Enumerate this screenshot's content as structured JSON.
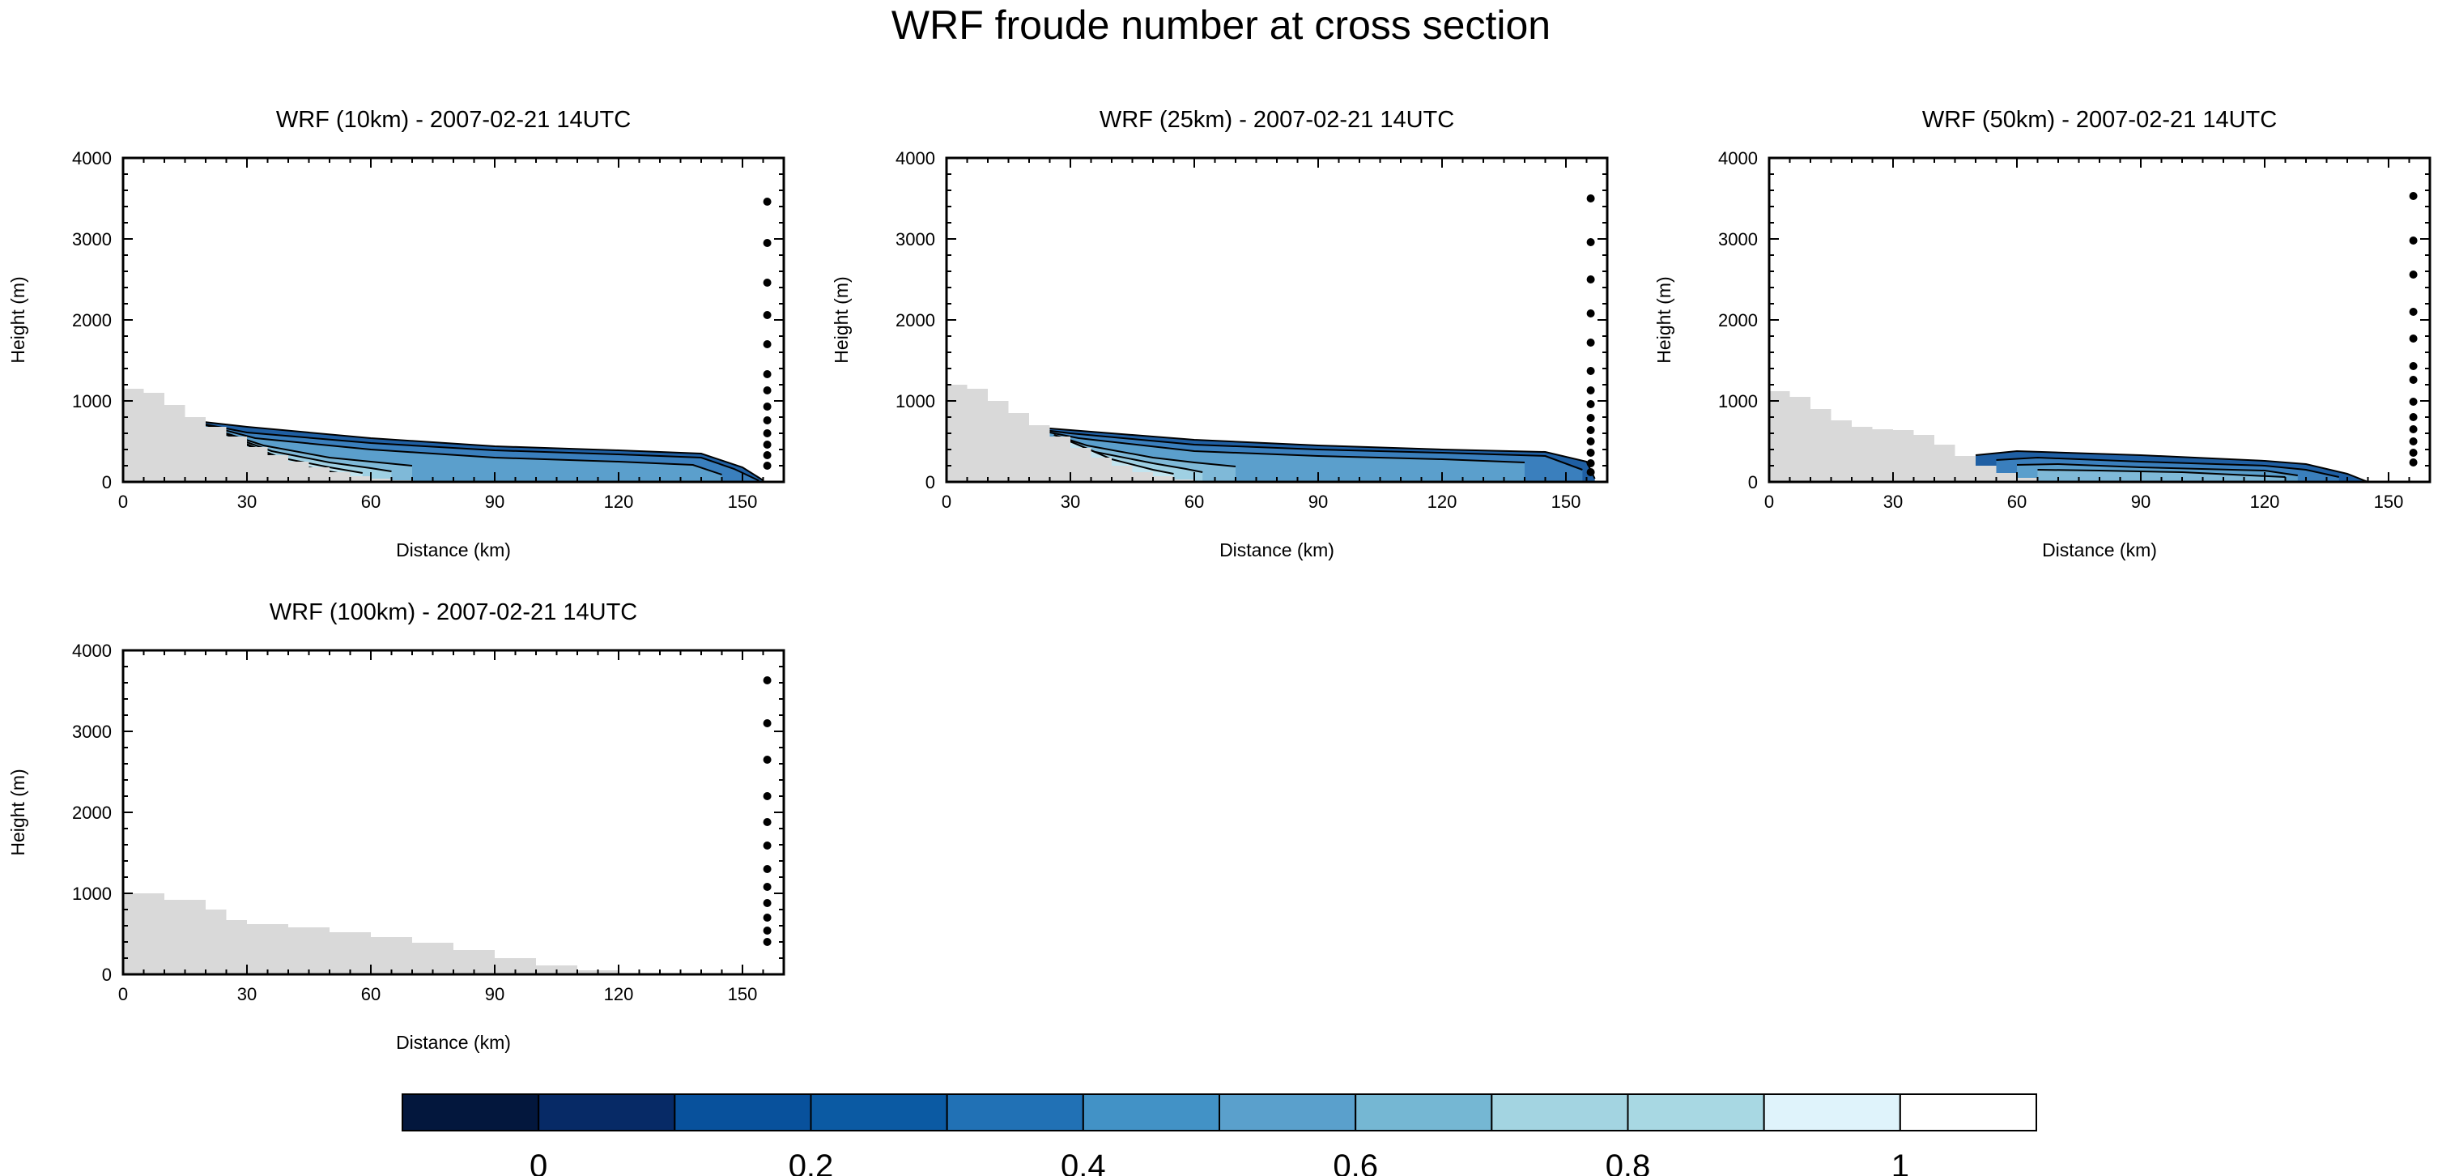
{
  "figure": {
    "title": "WRF froude number at cross section"
  },
  "chart_data": [
    {
      "type": "contour",
      "title": "WRF (10km) - 2007-02-21 14UTC",
      "xlabel": "Distance (km)",
      "ylabel": "Height (m)",
      "xlim": [
        0,
        160
      ],
      "ylim": [
        0,
        4000
      ],
      "xticks": [
        0,
        30,
        60,
        90,
        120,
        150
      ],
      "yticks": [
        0,
        1000,
        2000,
        3000,
        4000
      ],
      "terrain": {
        "x": [
          0,
          5,
          10,
          15,
          20,
          25,
          30,
          35,
          40,
          45,
          50,
          55,
          60,
          65,
          70,
          75,
          80,
          85,
          90
        ],
        "y": [
          1150,
          1100,
          950,
          800,
          680,
          560,
          430,
          330,
          250,
          180,
          120,
          70,
          40,
          20,
          10,
          5,
          0,
          0,
          0
        ]
      },
      "contour_lines": [
        {
          "x": [
            16,
            30,
            60,
            90,
            120,
            140,
            150,
            155
          ],
          "y": [
            760,
            680,
            540,
            440,
            390,
            350,
            180,
            20
          ]
        },
        {
          "x": [
            18,
            30,
            60,
            90,
            120,
            140,
            148,
            154
          ],
          "y": [
            730,
            610,
            480,
            390,
            340,
            300,
            160,
            15
          ]
        },
        {
          "x": [
            20,
            32,
            60,
            90,
            120,
            138,
            145
          ],
          "y": [
            700,
            540,
            400,
            300,
            250,
            210,
            90
          ]
        },
        {
          "x": [
            22,
            34,
            50,
            60,
            70
          ],
          "y": [
            650,
            450,
            300,
            250,
            200
          ]
        },
        {
          "x": [
            24,
            36,
            50,
            60,
            65
          ],
          "y": [
            600,
            380,
            240,
            170,
            130
          ]
        },
        {
          "x": [
            26,
            38,
            50,
            58
          ],
          "y": [
            550,
            300,
            180,
            110
          ]
        },
        {
          "x": [
            28,
            40,
            50,
            55
          ],
          "y": [
            500,
            230,
            130,
            80
          ]
        }
      ],
      "profile_points": [
        3460,
        2950,
        2460,
        2060,
        1700,
        1330,
        1130,
        930,
        760,
        600,
        460,
        330,
        200
      ]
    },
    {
      "type": "contour",
      "title": "WRF (25km) - 2007-02-21 14UTC",
      "xlabel": "Distance (km)",
      "ylabel": "Height (m)",
      "xlim": [
        0,
        160
      ],
      "ylim": [
        0,
        4000
      ],
      "xticks": [
        0,
        30,
        60,
        90,
        120,
        150
      ],
      "yticks": [
        0,
        1000,
        2000,
        3000,
        4000
      ],
      "terrain": {
        "x": [
          0,
          5,
          10,
          15,
          20,
          25,
          30,
          35,
          40,
          45,
          50,
          55,
          60,
          65,
          70
        ],
        "y": [
          1200,
          1150,
          1000,
          850,
          700,
          560,
          420,
          300,
          200,
          120,
          70,
          30,
          10,
          0,
          0
        ]
      },
      "contour_lines": [
        {
          "x": [
            20,
            30,
            60,
            90,
            120,
            145,
            155,
            157
          ],
          "y": [
            680,
            640,
            520,
            450,
            400,
            370,
            250,
            40
          ]
        },
        {
          "x": [
            22,
            30,
            60,
            90,
            120,
            145,
            154
          ],
          "y": [
            650,
            600,
            460,
            400,
            360,
            320,
            150
          ]
        },
        {
          "x": [
            24,
            32,
            60,
            90,
            120,
            140
          ],
          "y": [
            620,
            540,
            380,
            320,
            280,
            240
          ]
        },
        {
          "x": [
            26,
            34,
            50,
            60,
            70
          ],
          "y": [
            580,
            450,
            300,
            240,
            190
          ]
        },
        {
          "x": [
            28,
            36,
            50,
            58,
            62
          ],
          "y": [
            540,
            370,
            230,
            160,
            120
          ]
        },
        {
          "x": [
            30,
            40,
            50,
            55
          ],
          "y": [
            500,
            280,
            150,
            100
          ]
        }
      ],
      "profile_points": [
        3500,
        2960,
        2500,
        2080,
        1720,
        1370,
        1130,
        960,
        790,
        640,
        500,
        360,
        230,
        120
      ]
    },
    {
      "type": "contour",
      "title": "WRF (50km) - 2007-02-21 14UTC",
      "xlabel": "Distance (km)",
      "ylabel": "Height (m)",
      "xlim": [
        0,
        160
      ],
      "ylim": [
        0,
        4000
      ],
      "xticks": [
        0,
        30,
        60,
        90,
        120,
        150
      ],
      "yticks": [
        0,
        1000,
        2000,
        3000,
        4000
      ],
      "terrain": {
        "x": [
          0,
          5,
          10,
          15,
          20,
          25,
          30,
          35,
          40,
          45,
          50,
          55,
          60,
          65,
          70
        ],
        "y": [
          1120,
          1050,
          900,
          760,
          680,
          650,
          640,
          580,
          460,
          320,
          200,
          110,
          50,
          15,
          0
        ]
      },
      "contour_lines": [
        {
          "x": [
            50,
            60,
            90,
            120,
            130,
            140,
            145
          ],
          "y": [
            330,
            380,
            330,
            260,
            220,
            100,
            0
          ]
        },
        {
          "x": [
            55,
            65,
            90,
            120,
            130,
            138
          ],
          "y": [
            270,
            300,
            250,
            200,
            150,
            60
          ]
        },
        {
          "x": [
            60,
            70,
            90,
            120,
            128
          ],
          "y": [
            210,
            220,
            180,
            140,
            80
          ]
        },
        {
          "x": [
            65,
            80,
            100,
            125
          ],
          "y": [
            150,
            140,
            120,
            60
          ]
        }
      ],
      "profile_points": [
        3530,
        2980,
        2560,
        2100,
        1770,
        1430,
        1260,
        990,
        800,
        650,
        500,
        360,
        240
      ]
    },
    {
      "type": "contour",
      "title": "WRF (100km) - 2007-02-21 14UTC",
      "xlabel": "Distance (km)",
      "ylabel": "Height (m)",
      "xlim": [
        0,
        160
      ],
      "ylim": [
        0,
        4000
      ],
      "xticks": [
        0,
        30,
        60,
        90,
        120,
        150
      ],
      "yticks": [
        0,
        1000,
        2000,
        3000,
        4000
      ],
      "terrain": {
        "x": [
          0,
          10,
          20,
          25,
          30,
          40,
          50,
          60,
          70,
          80,
          90,
          100,
          110,
          120
        ],
        "y": [
          1000,
          920,
          800,
          670,
          620,
          580,
          520,
          460,
          390,
          300,
          200,
          110,
          50,
          0
        ]
      },
      "contour_lines": [],
      "profile_points": [
        3630,
        3100,
        2650,
        2200,
        1880,
        1590,
        1300,
        1080,
        880,
        700,
        540,
        400
      ]
    }
  ],
  "colorbar": {
    "levels": [
      0,
      0.1,
      0.2,
      0.3,
      0.4,
      0.5,
      0.6,
      0.7,
      0.8,
      0.9,
      1
    ],
    "tick_labels": [
      "0",
      "0.2",
      "0.4",
      "0.6",
      "0.8",
      "1"
    ],
    "colors": [
      "#03173d",
      "#072a66",
      "#08519c",
      "#0b5aa3",
      "#2171b5",
      "#4292c6",
      "#5aa0cc",
      "#75b7d3",
      "#a3d4e1",
      "#a8d8e3",
      "#dff3fb",
      "#ffffff"
    ]
  },
  "style": {
    "terrain_color": "#d9d9d9",
    "line_color": "#000000"
  }
}
